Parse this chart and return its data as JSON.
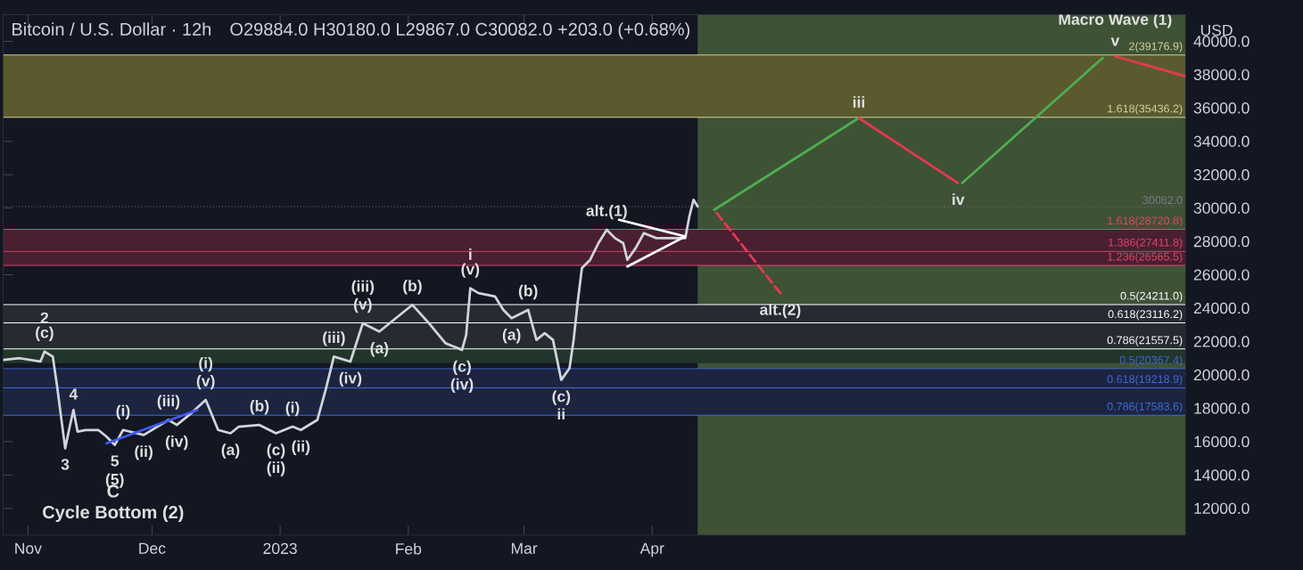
{
  "chart_data": {
    "type": "line",
    "title": "Bitcoin / U.S. Dollar · 12h",
    "subtitle": "O29884.0 H30180.0 L29867.0 C30082.0 +203.0 (+0.68%)",
    "ylabel": "USD",
    "xlim": [
      "2022-10-26",
      "2023-08-08"
    ],
    "ylim": [
      10400,
      41600
    ],
    "xticks": [
      {
        "value": "2022-11-01",
        "label": "Nov"
      },
      {
        "value": "2022-12-01",
        "label": "Dec"
      },
      {
        "value": "2023-01-01",
        "label": "2023"
      },
      {
        "value": "2023-02-01",
        "label": "Feb"
      },
      {
        "value": "2023-03-01",
        "label": "Mar"
      },
      {
        "value": "2023-04-01",
        "label": "Apr"
      }
    ],
    "yticks": [
      {
        "value": 12000,
        "label": "12000.0"
      },
      {
        "value": 14000,
        "label": "14000.0"
      },
      {
        "value": 16000,
        "label": "16000.0"
      },
      {
        "value": 18000,
        "label": "18000.0"
      },
      {
        "value": 20000,
        "label": "20000.0"
      },
      {
        "value": 22000,
        "label": "22000.0"
      },
      {
        "value": 24000,
        "label": "24000.0"
      },
      {
        "value": 26000,
        "label": "26000.0"
      },
      {
        "value": 28000,
        "label": "28000.0"
      },
      {
        "value": 30000,
        "label": "30000.0"
      },
      {
        "value": 32000,
        "label": "32000.0"
      },
      {
        "value": 34000,
        "label": "34000.0"
      },
      {
        "value": 36000,
        "label": "36000.0"
      },
      {
        "value": 38000,
        "label": "38000.0"
      },
      {
        "value": 40000,
        "label": "40000.0"
      }
    ],
    "series": [
      {
        "color": "#d1d4dc",
        "x": [
          "2022-10-26",
          "2022-10-30",
          "2022-11-04",
          "2022-11-05",
          "2022-11-07",
          "2022-11-08",
          "2022-11-10",
          "2022-11-11",
          "2022-11-12",
          "2022-11-13",
          "2022-11-15",
          "2022-11-18",
          "2022-11-20",
          "2022-11-22",
          "2022-11-24",
          "2022-11-29",
          "2022-12-05",
          "2022-12-07",
          "2022-12-10",
          "2022-12-14",
          "2022-12-17",
          "2022-12-20",
          "2022-12-22",
          "2022-12-27",
          "2022-12-31",
          "2023-01-04",
          "2023-01-06",
          "2023-01-10",
          "2023-01-12",
          "2023-01-14",
          "2023-01-18",
          "2023-01-21",
          "2023-01-25",
          "2023-01-29",
          "2023-02-02",
          "2023-02-06",
          "2023-02-10",
          "2023-02-14",
          "2023-02-15",
          "2023-02-16",
          "2023-02-18",
          "2023-02-22",
          "2023-02-24",
          "2023-02-26",
          "2023-03-02",
          "2023-03-04",
          "2023-03-06",
          "2023-03-08",
          "2023-03-10",
          "2023-03-12",
          "2023-03-13",
          "2023-03-14",
          "2023-03-15",
          "2023-03-17",
          "2023-03-19",
          "2023-03-21",
          "2023-03-23",
          "2023-03-25",
          "2023-03-26",
          "2023-03-28",
          "2023-03-30",
          "2023-04-02",
          "2023-04-05",
          "2023-04-09",
          "2023-04-10",
          "2023-04-11",
          "2023-04-12"
        ],
        "values": [
          20900,
          21000,
          20800,
          21400,
          21100,
          19400,
          15600,
          16800,
          17900,
          16600,
          16700,
          16700,
          16300,
          15800,
          16700,
          16400,
          17300,
          17000,
          17600,
          18500,
          16700,
          16500,
          16900,
          17000,
          16500,
          16900,
          16700,
          17300,
          19100,
          21100,
          20800,
          23100,
          22600,
          23400,
          24200,
          23100,
          21900,
          21500,
          22400,
          25200,
          24900,
          24700,
          23900,
          23400,
          23900,
          22100,
          22500,
          22100,
          19700,
          20400,
          22100,
          24400,
          26400,
          26900,
          27900,
          28700,
          28200,
          27900,
          26900,
          27600,
          28500,
          28200,
          28200,
          28200,
          29500,
          30500,
          30100
        ]
      },
      {
        "color": "#4caf50",
        "x": [
          "2023-04-16",
          "2023-05-21"
        ],
        "values": [
          29900,
          35400
        ]
      },
      {
        "color": "#e53950",
        "x": [
          "2023-05-21",
          "2023-06-14"
        ],
        "values": [
          35400,
          31500
        ]
      },
      {
        "color": "#4caf50",
        "x": [
          "2023-06-15",
          "2023-07-19"
        ],
        "values": [
          31500,
          39000
        ]
      },
      {
        "color": "#e53950",
        "x": [
          "2023-07-22",
          "2023-08-08"
        ],
        "values": [
          39100,
          37900
        ]
      },
      {
        "color": "#e53950",
        "line_style": "dashed",
        "x": [
          "2023-04-16",
          "2023-05-02"
        ],
        "values": [
          29900,
          24900
        ]
      },
      {
        "color": "#ffffff",
        "x": [
          "2023-03-24",
          "2023-04-09"
        ],
        "values": [
          29300,
          28300
        ]
      },
      {
        "color": "#ffffff",
        "x": [
          "2023-03-26",
          "2023-04-09"
        ],
        "values": [
          26500,
          28300
        ]
      },
      {
        "color": "#3d5afe",
        "x": [
          "2022-11-20",
          "2022-12-12"
        ],
        "values": [
          15900,
          17900
        ]
      }
    ],
    "bands": [
      {
        "axis": "x",
        "from": "2023-04-12",
        "to": "2023-08-08",
        "color": "#3e5236"
      },
      {
        "axis": "y",
        "from": 35436.2,
        "to": 39176.9,
        "color": "#5a5a2e"
      },
      {
        "axis": "y",
        "from": 26565.5,
        "to": 28720.8,
        "color": "#4a1f32"
      },
      {
        "axis": "y",
        "from": 21557.5,
        "to": 24211.0,
        "color": "#262a33"
      },
      {
        "axis": "y",
        "from": 20700,
        "to": 21700,
        "color": "#22352a"
      },
      {
        "axis": "y",
        "from": 17583.6,
        "to": 20367.4,
        "color": "#1c2440"
      }
    ],
    "ref_lines": [
      {
        "axis": "y",
        "value": 30082.0,
        "label": "30082.0",
        "color": "#787b86",
        "line_style": "dotted"
      },
      {
        "axis": "y",
        "value": 39176.9,
        "label": "2(39176.9)",
        "color": "#d8d39a"
      },
      {
        "axis": "y",
        "value": 35436.2,
        "label": "1.618(35436.2)",
        "color": "#d8d39a"
      },
      {
        "axis": "y",
        "value": 28720.8,
        "label": "1.618(28720.8)",
        "color": "#e0456a"
      },
      {
        "axis": "y",
        "value": 27411.8,
        "label": "1.386(27411.8)",
        "color": "#e0456a"
      },
      {
        "axis": "y",
        "value": 26565.5,
        "label": "1.236(26565.5)",
        "color": "#e0456a"
      },
      {
        "axis": "y",
        "value": 24211.0,
        "label": "0.5(24211.0)",
        "color": "#ffffff"
      },
      {
        "axis": "y",
        "value": 23116.2,
        "label": "0.618(23116.2)",
        "color": "#ffffff"
      },
      {
        "axis": "y",
        "value": 21557.5,
        "label": "0.786(21557.5)",
        "color": "#ffffff"
      },
      {
        "axis": "y",
        "value": 20367.4,
        "label": "0.5(20367.4)",
        "color": "#3d6bd8"
      },
      {
        "axis": "y",
        "value": 19218.9,
        "label": "0.618(19218.9)",
        "color": "#3d6bd8"
      },
      {
        "axis": "y",
        "value": 17583.6,
        "label": "0.786(17583.6)",
        "color": "#3d6bd8"
      }
    ],
    "annotations": [
      {
        "text": "(c)",
        "x": "2022-11-05",
        "y": 21400
      },
      {
        "text": "2",
        "x": "2022-11-05",
        "y": 21400
      },
      {
        "text": "4",
        "x": "2022-11-12",
        "y": 17900
      },
      {
        "text": "3",
        "x": "2022-11-10",
        "y": 15600
      },
      {
        "text": "5",
        "x": "2022-11-22",
        "y": 15800
      },
      {
        "text": "(5)",
        "x": "2022-11-22",
        "y": 15800
      },
      "C",
      "Cycle Bottom (2)",
      {
        "text": "(i)",
        "x": "2022-11-24",
        "y": 16700
      },
      {
        "text": "(ii)",
        "x": "2022-11-29",
        "y": 16400
      },
      {
        "text": "(iii)",
        "x": "2022-12-05",
        "y": 17300
      },
      {
        "text": "(iv)",
        "x": "2022-12-07",
        "y": 17000
      },
      {
        "text": "(v)",
        "x": "2022-12-14",
        "y": 18500
      },
      {
        "text": "(i)",
        "x": "2022-12-14",
        "y": 18500
      },
      {
        "text": "(a)",
        "x": "2022-12-20",
        "y": 16500
      },
      {
        "text": "(b)",
        "x": "2022-12-27",
        "y": 17000
      },
      {
        "text": "(c)",
        "x": "2022-12-31",
        "y": 16500
      },
      {
        "text": "(ii)",
        "x": "2022-12-31",
        "y": 16500
      },
      {
        "text": "(i)",
        "x": "2023-01-04",
        "y": 16900
      },
      {
        "text": "(ii)",
        "x": "2023-01-06",
        "y": 16700
      },
      {
        "text": "(iii)",
        "x": "2023-01-14",
        "y": 21100
      },
      {
        "text": "(iv)",
        "x": "2023-01-18",
        "y": 20800
      },
      {
        "text": "(v)",
        "x": "2023-01-21",
        "y": 23100
      },
      {
        "text": "(iii)",
        "x": "2023-01-21",
        "y": 23100
      },
      {
        "text": "(a)",
        "x": "2023-01-25",
        "y": 22600
      },
      {
        "text": "(b)",
        "x": "2023-02-02",
        "y": 24200
      },
      {
        "text": "(c)",
        "x": "2023-02-14",
        "y": 21500
      },
      {
        "text": "(iv)",
        "x": "2023-02-14",
        "y": 21500
      },
      {
        "text": "(v)",
        "x": "2023-02-16",
        "y": 25200
      },
      {
        "text": "i",
        "x": "2023-02-16",
        "y": 25200
      },
      {
        "text": "(a)",
        "x": "2023-02-26",
        "y": 23400
      },
      {
        "text": "(b)",
        "x": "2023-03-02",
        "y": 23900
      },
      {
        "text": "(c)",
        "x": "2023-03-10",
        "y": 19700
      },
      {
        "text": "ii",
        "x": "2023-03-10",
        "y": 19700
      },
      {
        "text": "alt.(1)",
        "x": "2023-03-21",
        "y": 28700
      },
      {
        "text": "alt.(2)",
        "x": "2023-05-02",
        "y": 24900
      },
      {
        "text": "iii",
        "x": "2023-05-21",
        "y": 35400
      },
      {
        "text": "iv",
        "x": "2023-06-14",
        "y": 31500
      },
      {
        "text": "v",
        "x": "2023-07-22",
        "y": 39100
      },
      {
        "text": "Macro Wave (1)",
        "x": "2023-07-22",
        "y": 39100
      }
    ]
  }
}
